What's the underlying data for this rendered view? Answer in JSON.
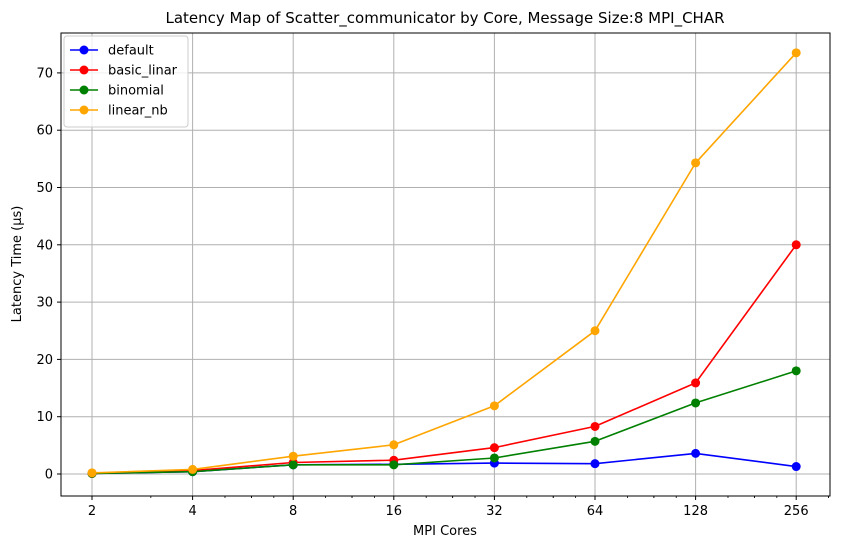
{
  "chart_data": {
    "type": "line",
    "title": "Latency Map of Scatter_communicator by Core, Message Size:8 MPI_CHAR",
    "xlabel": "MPI Cores",
    "ylabel": "Latency Time (µs)",
    "x_scale": "log2",
    "x": [
      2,
      4,
      8,
      16,
      32,
      64,
      128,
      256
    ],
    "x_tick_labels": [
      "2",
      "4",
      "8",
      "16",
      "32",
      "64",
      "128",
      "256"
    ],
    "y_ticks": [
      0,
      10,
      20,
      30,
      40,
      50,
      60,
      70
    ],
    "y_tick_labels": [
      "0",
      "10",
      "20",
      "30",
      "40",
      "50",
      "60",
      "70"
    ],
    "ylim": [
      -2.5,
      77.5
    ],
    "grid": true,
    "legend_position": "upper-left",
    "series": [
      {
        "name": "default",
        "color": "#0000ff",
        "values": [
          0.1,
          0.4,
          1.6,
          1.7,
          1.9,
          1.8,
          3.6,
          1.3
        ]
      },
      {
        "name": "basic_linar",
        "color": "#ff0000",
        "values": [
          0.1,
          0.6,
          2.0,
          2.4,
          4.6,
          8.3,
          15.9,
          40.0
        ]
      },
      {
        "name": "binomial",
        "color": "#008000",
        "values": [
          0.1,
          0.4,
          1.6,
          1.6,
          2.8,
          5.7,
          12.4,
          18.0
        ]
      },
      {
        "name": "linear_nb",
        "color": "#ffa500",
        "values": [
          0.2,
          0.8,
          3.1,
          5.1,
          11.9,
          25.0,
          54.3,
          73.5
        ]
      }
    ]
  }
}
